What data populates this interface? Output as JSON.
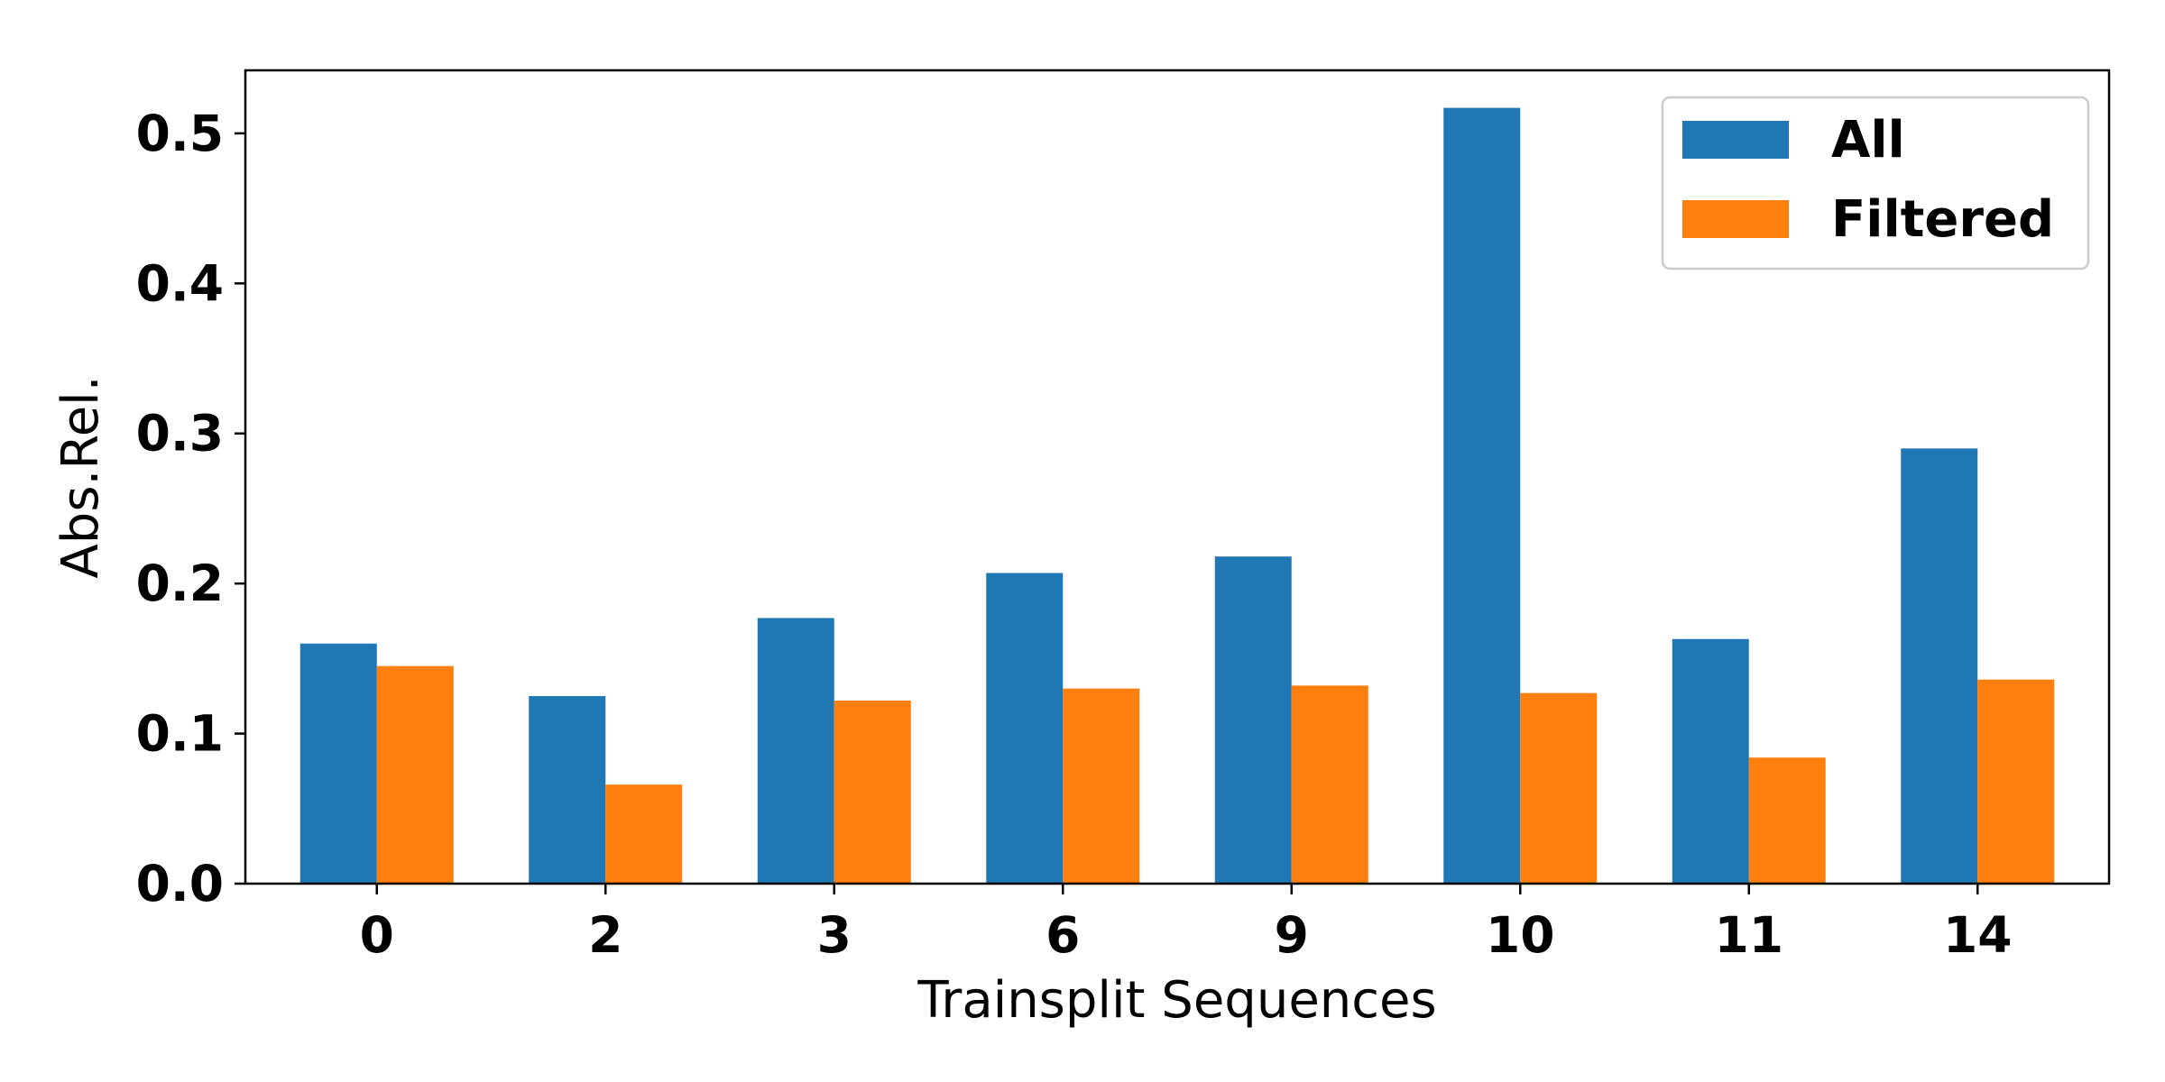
{
  "chart_data": {
    "type": "bar",
    "title": "",
    "xlabel": "Trainsplit Sequences",
    "ylabel": "Abs.Rel.",
    "categories": [
      "0",
      "2",
      "3",
      "6",
      "9",
      "10",
      "11",
      "14"
    ],
    "series": [
      {
        "name": "All",
        "color": "#1f77b4",
        "values": [
          0.16,
          0.125,
          0.177,
          0.207,
          0.218,
          0.517,
          0.163,
          0.29
        ]
      },
      {
        "name": "Filtered",
        "color": "#ff7f0e",
        "values": [
          0.145,
          0.066,
          0.122,
          0.13,
          0.132,
          0.127,
          0.084,
          0.136
        ]
      }
    ],
    "ylim": [
      0,
      0.542
    ],
    "yticks": [
      0.0,
      0.1,
      0.2,
      0.3,
      0.4,
      0.5
    ],
    "ytick_labels": [
      "0.0",
      "0.1",
      "0.2",
      "0.3",
      "0.4",
      "0.5"
    ],
    "grid": false,
    "legend_position": "top-right"
  }
}
